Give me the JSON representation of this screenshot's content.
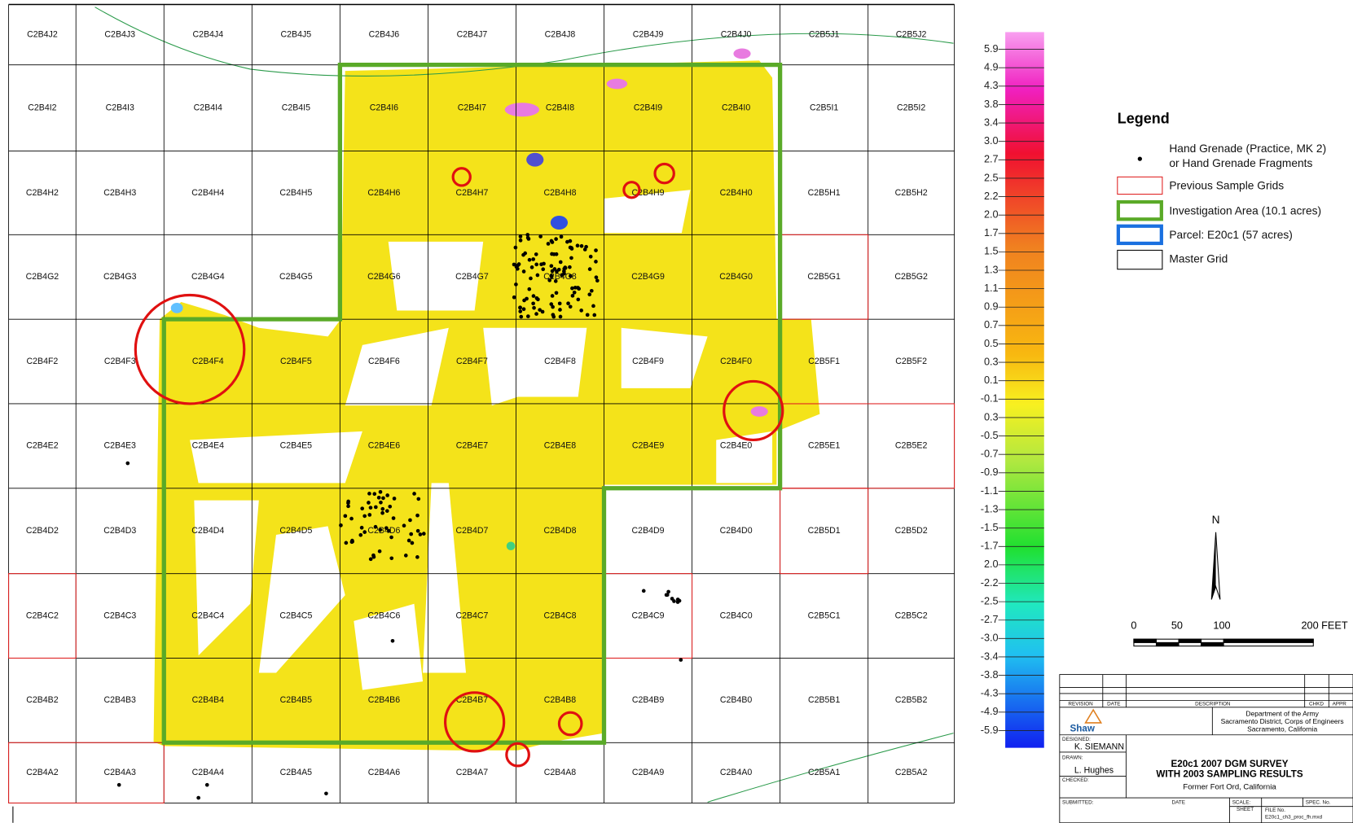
{
  "map": {
    "grid": [
      [
        "C2B4J2",
        "C2B4J3",
        "C2B4J4",
        "C2B4J5",
        "C2B4J6",
        "C2B4J7",
        "C2B4J8",
        "C2B4J9",
        "C2B4J0",
        "C2B5J1",
        "C2B5J2"
      ],
      [
        "C2B4I2",
        "C2B4I3",
        "C2B4I4",
        "C2B4I5",
        "C2B4I6",
        "C2B4I7",
        "C2B4I8",
        "C2B4I9",
        "C2B4I0",
        "C2B5I1",
        "C2B5I2"
      ],
      [
        "C2B4H2",
        "C2B4H3",
        "C2B4H4",
        "C2B4H5",
        "C2B4H6",
        "C2B4H7",
        "C2B4H8",
        "C2B4H9",
        "C2B4H0",
        "C2B5H1",
        "C2B5H2"
      ],
      [
        "C2B4G2",
        "C2B4G3",
        "C2B4G4",
        "C2B4G5",
        "C2B4G6",
        "C2B4G7",
        "C2B4G8",
        "C2B4G9",
        "C2B4G0",
        "C2B5G1",
        "C2B5G2"
      ],
      [
        "C2B4F2",
        "C2B4F3",
        "C2B4F4",
        "C2B4F5",
        "C2B4F6",
        "C2B4F7",
        "C2B4F8",
        "C2B4F9",
        "C2B4F0",
        "C2B5F1",
        "C2B5F2"
      ],
      [
        "C2B4E2",
        "C2B4E3",
        "C2B4E4",
        "C2B4E5",
        "C2B4E6",
        "C2B4E7",
        "C2B4E8",
        "C2B4E9",
        "C2B4E0",
        "C2B5E1",
        "C2B5E2"
      ],
      [
        "C2B4D2",
        "C2B4D3",
        "C2B4D4",
        "C2B4D5",
        "C2B4D6",
        "C2B4D7",
        "C2B4D8",
        "C2B4D9",
        "C2B4D0",
        "C2B5D1",
        "C2B5D2"
      ],
      [
        "C2B4C2",
        "C2B4C3",
        "C2B4C4",
        "C2B4C5",
        "C2B4C6",
        "C2B4C7",
        "C2B4C8",
        "C2B4C9",
        "C2B4C0",
        "C2B5C1",
        "C2B5C2"
      ],
      [
        "C2B4B2",
        "C2B4B3",
        "C2B4B4",
        "C2B4B5",
        "C2B4B6",
        "C2B4B7",
        "C2B4B8",
        "C2B4B9",
        "C2B4B0",
        "C2B5B1",
        "C2B5B2"
      ],
      [
        "C2B4A2",
        "C2B4A3",
        "C2B4A4",
        "C2B4A5",
        "C2B4A6",
        "C2B4A7",
        "C2B4A8",
        "C2B4A9",
        "C2B4A0",
        "C2B5A1",
        "C2B5A2"
      ]
    ],
    "color_scale": [
      "5.9",
      "4.9",
      "4.3",
      "3.8",
      "3.4",
      "3.0",
      "2.7",
      "2.5",
      "2.2",
      "2.0",
      "1.7",
      "1.5",
      "1.3",
      "1.1",
      "0.9",
      "0.7",
      "0.5",
      "0.3",
      "0.1",
      "-0.1",
      "0.3",
      "-0.5",
      "-0.7",
      "-0.9",
      "-1.1",
      "-1.3",
      "-1.5",
      "-1.7",
      "2.0",
      "-2.2",
      "-2.5",
      "-2.7",
      "-3.0",
      "-3.4",
      "-3.8",
      "-4.3",
      "-4.9",
      "-5.9"
    ],
    "legend": {
      "title": "Legend",
      "entries": [
        "Hand Grenade (Practice, MK 2)",
        "or Hand Grenade Fragments",
        "Previous Sample Grids",
        "Investigation Area (10.1 acres)",
        "Parcel: E20c1 (57 acres)",
        "Master Grid"
      ]
    },
    "north": "N",
    "scale_bar": [
      "0",
      "50",
      "100",
      "200 FEET"
    ],
    "title_block": {
      "revision": "REVISION",
      "date": "DATE",
      "description": "DESCRIPTION",
      "chkd": "CHKD",
      "appr": "APPR",
      "agency": [
        "Department of the Army",
        "Sacramento District, Corps of Engineers",
        "Sacramento, California"
      ],
      "company": "Shaw",
      "designed_label": "DESIGNED:",
      "designed": "K. SIEMANN",
      "drawn_label": "DRAWN:",
      "drawn": "L. Hughes",
      "checked_label": "CHECKED:",
      "title": [
        "E20c1 2007 DGM SURVEY",
        "WITH 2003 SAMPLING RESULTS",
        "Former Fort Ord, California"
      ],
      "submitted_label": "SUBMITTED:",
      "submitted_date": "DATE",
      "scale_label": "SCALE:",
      "spec_label": "SPEC. No.",
      "sheet_label": "SHEET",
      "file_label": "FILE No.",
      "file": "E20c1_ch3_proc_fh.mxd"
    }
  }
}
